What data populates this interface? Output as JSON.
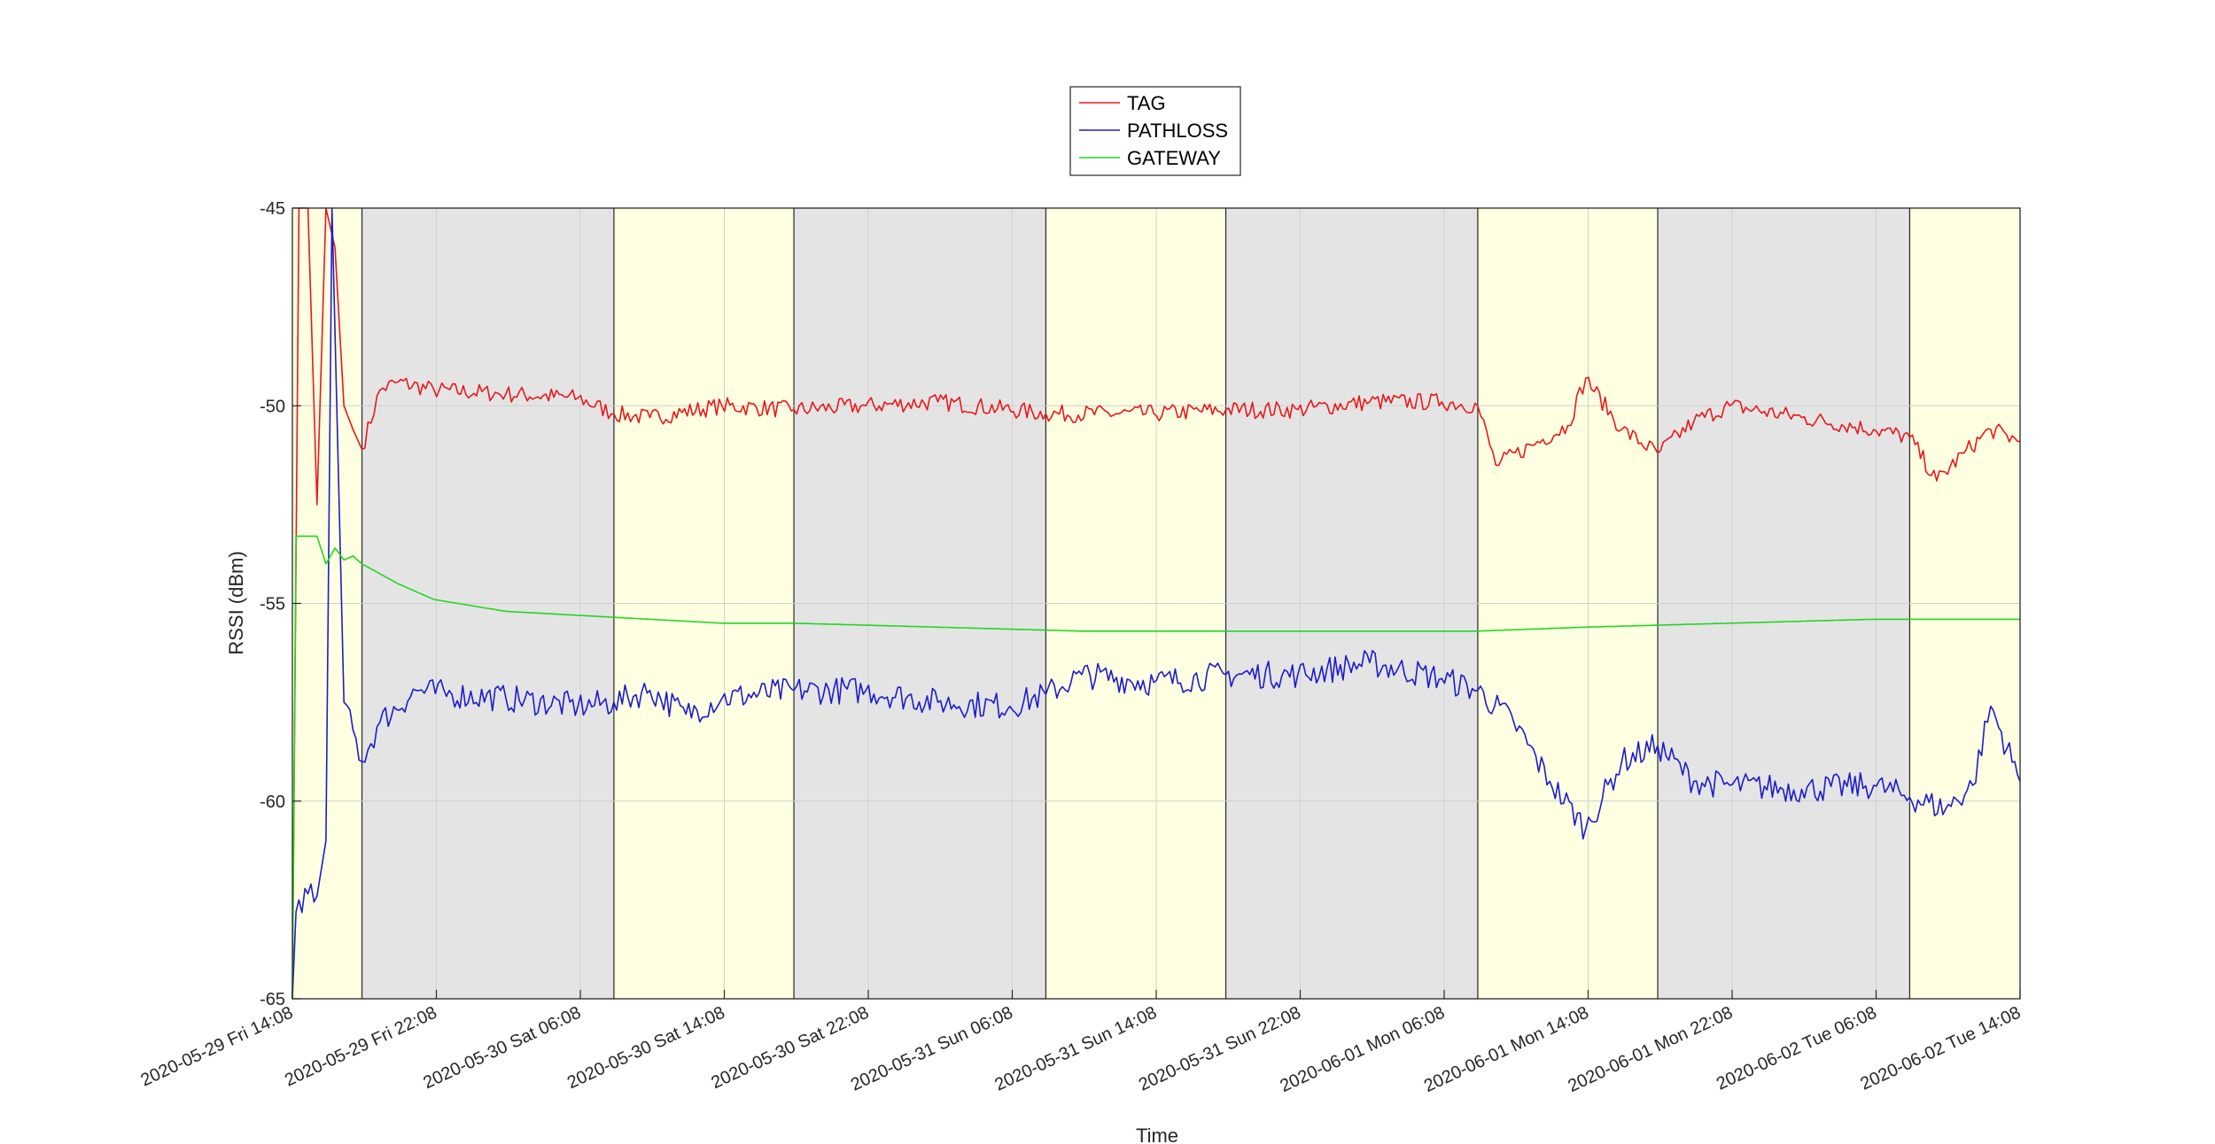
{
  "chart_data": {
    "type": "line",
    "title": "",
    "xlabel": "Time",
    "ylabel": "RSSI (dBm)",
    "ylim": [
      -65,
      -45
    ],
    "xlim": [
      "2020-05-29 14:08",
      "2020-06-02 14:08"
    ],
    "y_ticks": [
      -65,
      -60,
      -55,
      -50,
      -45
    ],
    "y_tick_labels": [
      "-65",
      "-60",
      "-55",
      "-50",
      "-45"
    ],
    "x_ticks": [
      "2020-05-29 14:08",
      "2020-05-29 22:08",
      "2020-05-30 06:08",
      "2020-05-30 14:08",
      "2020-05-30 22:08",
      "2020-05-31 06:08",
      "2020-05-31 14:08",
      "2020-05-31 22:08",
      "2020-06-01 06:08",
      "2020-06-01 14:08",
      "2020-06-01 22:08",
      "2020-06-02 06:08",
      "2020-06-02 14:08"
    ],
    "x_tick_labels": [
      "2020-05-29 Fri 14:08",
      "2020-05-29 Fri 22:08",
      "2020-05-30 Sat 06:08",
      "2020-05-30 Sat 14:08",
      "2020-05-30 Sat 22:08",
      "2020-05-31 Sun 06:08",
      "2020-05-31 Sun 14:08",
      "2020-05-31 Sun 22:08",
      "2020-06-01 Mon 06:08",
      "2020-06-01 Mon 14:08",
      "2020-06-01 Mon 22:08",
      "2020-06-02 Tue 06:08",
      "2020-06-02 Tue 14:08"
    ],
    "grid": true,
    "legend_position": "top-center",
    "background_bands": [
      {
        "start": "2020-05-29 14:08",
        "end": "2020-05-29 18:00",
        "color": "#ffffe1"
      },
      {
        "start": "2020-05-29 18:00",
        "end": "2020-05-30 08:00",
        "color": "#e4e4e4"
      },
      {
        "start": "2020-05-30 08:00",
        "end": "2020-05-30 18:00",
        "color": "#ffffe1"
      },
      {
        "start": "2020-05-30 18:00",
        "end": "2020-05-31 08:00",
        "color": "#e4e4e4"
      },
      {
        "start": "2020-05-31 08:00",
        "end": "2020-05-31 18:00",
        "color": "#ffffe1"
      },
      {
        "start": "2020-05-31 18:00",
        "end": "2020-06-01 08:00",
        "color": "#e4e4e4"
      },
      {
        "start": "2020-06-01 08:00",
        "end": "2020-06-01 18:00",
        "color": "#ffffe1"
      },
      {
        "start": "2020-06-01 18:00",
        "end": "2020-06-02 08:00",
        "color": "#e4e4e4"
      },
      {
        "start": "2020-06-02 08:00",
        "end": "2020-06-02 14:08",
        "color": "#ffffe1"
      }
    ],
    "series": [
      {
        "name": "TAG",
        "color": "#e8191b",
        "x": [
          "2020-05-29 14:08",
          "2020-05-29 14:30",
          "2020-05-29 15:00",
          "2020-05-29 15:30",
          "2020-05-29 16:00",
          "2020-05-29 16:30",
          "2020-05-29 17:00",
          "2020-05-29 17:30",
          "2020-05-29 18:00",
          "2020-05-29 19:00",
          "2020-05-29 20:00",
          "2020-05-29 22:00",
          "2020-05-30 02:00",
          "2020-05-30 06:00",
          "2020-05-30 08:00",
          "2020-05-30 10:00",
          "2020-05-30 14:00",
          "2020-05-30 18:00",
          "2020-05-30 22:00",
          "2020-05-31 02:00",
          "2020-05-31 08:00",
          "2020-05-31 14:00",
          "2020-05-31 18:00",
          "2020-05-31 22:00",
          "2020-06-01 02:00",
          "2020-06-01 06:00",
          "2020-06-01 08:00",
          "2020-06-01 09:00",
          "2020-06-01 11:00",
          "2020-06-01 13:00",
          "2020-06-01 14:00",
          "2020-06-01 16:00",
          "2020-06-01 18:00",
          "2020-06-01 20:00",
          "2020-06-01 22:00",
          "2020-06-02 02:00",
          "2020-06-02 06:00",
          "2020-06-02 08:00",
          "2020-06-02 09:30",
          "2020-06-02 11:00",
          "2020-06-02 12:30",
          "2020-06-02 14:08"
        ],
        "values": [
          -65.0,
          -45.0,
          -45.0,
          -52.5,
          -45.0,
          -46.0,
          -50.0,
          -50.6,
          -51.1,
          -49.6,
          -49.4,
          -49.6,
          -49.7,
          -49.8,
          -50.2,
          -50.3,
          -50.0,
          -50.1,
          -50.0,
          -49.9,
          -50.2,
          -50.2,
          -50.1,
          -50.1,
          -49.9,
          -49.9,
          -50.0,
          -51.5,
          -51.0,
          -50.5,
          -49.3,
          -50.6,
          -51.2,
          -50.4,
          -50.0,
          -50.3,
          -50.6,
          -50.8,
          -51.9,
          -51.2,
          -50.6,
          -50.9
        ]
      },
      {
        "name": "PATHLOSS",
        "color": "#1c1ccc",
        "x": [
          "2020-05-29 14:08",
          "2020-05-29 14:20",
          "2020-05-29 14:30",
          "2020-05-29 15:30",
          "2020-05-29 16:00",
          "2020-05-29 16:20",
          "2020-05-29 17:00",
          "2020-05-29 18:00",
          "2020-05-29 19:00",
          "2020-05-29 21:00",
          "2020-05-29 23:00",
          "2020-05-30 02:00",
          "2020-05-30 06:00",
          "2020-05-30 08:00",
          "2020-05-30 10:00",
          "2020-05-30 12:00",
          "2020-05-30 14:00",
          "2020-05-30 18:00",
          "2020-05-30 22:00",
          "2020-05-31 02:00",
          "2020-05-31 06:00",
          "2020-05-31 08:00",
          "2020-05-31 10:00",
          "2020-05-31 14:00",
          "2020-05-31 18:00",
          "2020-05-31 22:00",
          "2020-06-01 02:00",
          "2020-06-01 06:00",
          "2020-06-01 08:00",
          "2020-06-01 10:00",
          "2020-06-01 12:00",
          "2020-06-01 14:00",
          "2020-06-01 16:00",
          "2020-06-01 18:00",
          "2020-06-01 20:00",
          "2020-06-01 22:00",
          "2020-06-02 02:00",
          "2020-06-02 06:00",
          "2020-06-02 08:00",
          "2020-06-02 10:00",
          "2020-06-02 11:30",
          "2020-06-02 12:30",
          "2020-06-02 14:08"
        ],
        "values": [
          -65.0,
          -62.8,
          -62.5,
          -62.4,
          -61.0,
          -45.0,
          -57.5,
          -59.0,
          -58.0,
          -57.2,
          -57.3,
          -57.4,
          -57.6,
          -57.5,
          -57.2,
          -57.8,
          -57.4,
          -57.2,
          -57.2,
          -57.5,
          -57.6,
          -57.3,
          -56.8,
          -57.0,
          -56.8,
          -56.8,
          -56.5,
          -56.9,
          -57.2,
          -58.0,
          -59.5,
          -60.7,
          -59.0,
          -58.6,
          -59.5,
          -59.6,
          -59.7,
          -59.6,
          -59.9,
          -60.2,
          -59.6,
          -57.6,
          -59.5
        ]
      },
      {
        "name": "GATEWAY",
        "color": "#22d622",
        "x": [
          "2020-05-29 14:08",
          "2020-05-29 14:20",
          "2020-05-29 14:30",
          "2020-05-29 15:30",
          "2020-05-29 16:00",
          "2020-05-29 16:30",
          "2020-05-29 17:00",
          "2020-05-29 17:30",
          "2020-05-29 18:00",
          "2020-05-29 20:00",
          "2020-05-29 22:00",
          "2020-05-30 02:00",
          "2020-05-30 06:00",
          "2020-05-30 10:00",
          "2020-05-30 14:00",
          "2020-05-30 18:00",
          "2020-05-31 02:00",
          "2020-05-31 10:00",
          "2020-05-31 18:00",
          "2020-06-01 02:00",
          "2020-06-01 08:00",
          "2020-06-01 14:00",
          "2020-06-01 22:00",
          "2020-06-02 06:00",
          "2020-06-02 14:08"
        ],
        "values": [
          -65.0,
          -53.3,
          -53.3,
          -53.3,
          -54.0,
          -53.6,
          -53.9,
          -53.8,
          -54.0,
          -54.5,
          -54.9,
          -55.2,
          -55.3,
          -55.4,
          -55.5,
          -55.5,
          -55.6,
          -55.7,
          -55.7,
          -55.7,
          -55.7,
          -55.6,
          -55.5,
          -55.4,
          -55.4
        ]
      }
    ]
  }
}
